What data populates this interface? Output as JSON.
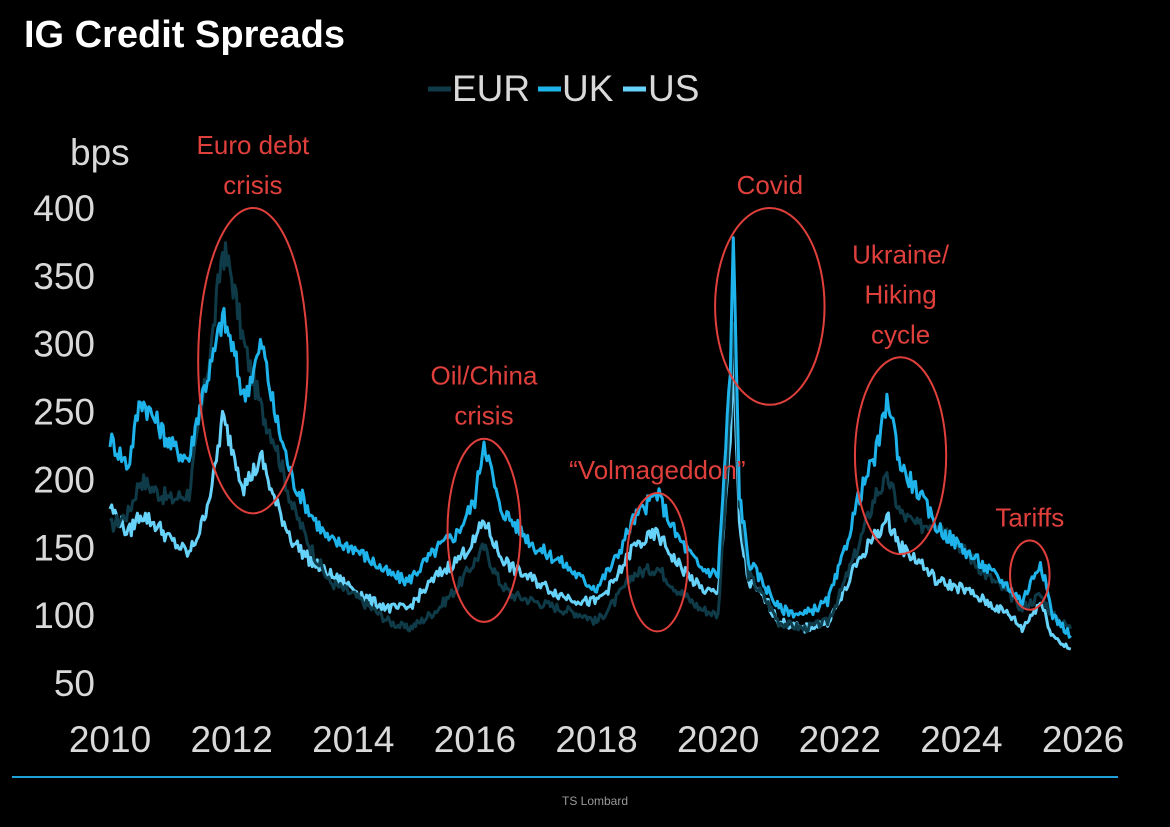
{
  "source": "TS Lombard",
  "colors": {
    "background": "#000000",
    "EUR": "#0f3a47",
    "UK": "#1eb3ea",
    "US": "#68d3fa",
    "annotation": "#e0403c",
    "footer_line": "#1ea0d8"
  },
  "chart_data": {
    "type": "line",
    "title": "IG Credit Spreads",
    "ylabel": "bps",
    "xlabel": "",
    "ylim": [
      50,
      400
    ],
    "xlim": [
      2010,
      2026
    ],
    "yticks": [
      400,
      350,
      300,
      250,
      200,
      150,
      100,
      50
    ],
    "xticks": [
      2010,
      2012,
      2014,
      2016,
      2018,
      2020,
      2022,
      2024,
      2026
    ],
    "grid": false,
    "legend_position": "top-center",
    "series": [
      {
        "name": "EUR",
        "color": "#0f3a47",
        "x": [
          2010.0,
          2010.3,
          2010.5,
          2010.8,
          2011.0,
          2011.3,
          2011.5,
          2011.7,
          2011.85,
          2012.0,
          2012.2,
          2012.5,
          2012.7,
          2013.0,
          2013.3,
          2013.6,
          2014.0,
          2014.3,
          2014.6,
          2014.9,
          2015.1,
          2015.4,
          2015.7,
          2016.0,
          2016.15,
          2016.4,
          2016.6,
          2017.0,
          2017.4,
          2017.8,
          2018.0,
          2018.3,
          2018.6,
          2019.0,
          2019.3,
          2019.7,
          2020.0,
          2020.2,
          2020.25,
          2020.35,
          2020.5,
          2020.8,
          2021.0,
          2021.4,
          2021.8,
          2022.0,
          2022.3,
          2022.6,
          2022.8,
          2023.0,
          2023.3,
          2023.6,
          2024.0,
          2024.4,
          2024.8,
          2025.0,
          2025.3,
          2025.5,
          2025.8
        ],
        "y": [
          165,
          175,
          200,
          190,
          185,
          190,
          250,
          310,
          370,
          350,
          300,
          250,
          230,
          180,
          150,
          125,
          115,
          105,
          95,
          90,
          95,
          105,
          120,
          140,
          150,
          125,
          115,
          110,
          105,
          100,
          95,
          110,
          130,
          135,
          120,
          105,
          100,
          250,
          320,
          180,
          130,
          110,
          95,
          90,
          95,
          115,
          150,
          190,
          200,
          175,
          165,
          170,
          150,
          130,
          115,
          105,
          115,
          100,
          90
        ]
      },
      {
        "name": "UK",
        "color": "#1eb3ea",
        "x": [
          2010.0,
          2010.3,
          2010.5,
          2010.8,
          2011.0,
          2011.3,
          2011.5,
          2011.7,
          2011.85,
          2012.0,
          2012.2,
          2012.5,
          2012.7,
          2013.0,
          2013.3,
          2013.6,
          2014.0,
          2014.3,
          2014.6,
          2014.9,
          2015.1,
          2015.4,
          2015.7,
          2016.0,
          2016.15,
          2016.4,
          2016.6,
          2017.0,
          2017.4,
          2017.8,
          2018.0,
          2018.3,
          2018.6,
          2019.0,
          2019.3,
          2019.7,
          2020.0,
          2020.2,
          2020.25,
          2020.35,
          2020.5,
          2020.8,
          2021.0,
          2021.4,
          2021.8,
          2022.0,
          2022.3,
          2022.6,
          2022.8,
          2023.0,
          2023.3,
          2023.6,
          2024.0,
          2024.4,
          2024.8,
          2025.0,
          2025.3,
          2025.5,
          2025.8
        ],
        "y": [
          230,
          210,
          260,
          240,
          225,
          215,
          260,
          290,
          320,
          300,
          260,
          300,
          250,
          200,
          175,
          155,
          150,
          140,
          130,
          125,
          135,
          150,
          160,
          185,
          230,
          180,
          170,
          150,
          140,
          125,
          120,
          140,
          170,
          190,
          160,
          135,
          130,
          280,
          375,
          190,
          140,
          120,
          105,
          100,
          110,
          135,
          185,
          220,
          260,
          210,
          190,
          165,
          150,
          135,
          120,
          110,
          140,
          100,
          85
        ]
      },
      {
        "name": "US",
        "color": "#68d3fa",
        "x": [
          2010.0,
          2010.3,
          2010.5,
          2010.8,
          2011.0,
          2011.3,
          2011.5,
          2011.7,
          2011.85,
          2012.0,
          2012.2,
          2012.5,
          2012.7,
          2013.0,
          2013.3,
          2013.6,
          2014.0,
          2014.3,
          2014.6,
          2014.9,
          2015.1,
          2015.4,
          2015.7,
          2016.0,
          2016.15,
          2016.4,
          2016.6,
          2017.0,
          2017.4,
          2017.8,
          2018.0,
          2018.3,
          2018.6,
          2019.0,
          2019.3,
          2019.7,
          2020.0,
          2020.2,
          2020.25,
          2020.35,
          2020.5,
          2020.8,
          2021.0,
          2021.4,
          2021.8,
          2022.0,
          2022.3,
          2022.6,
          2022.8,
          2023.0,
          2023.3,
          2023.6,
          2024.0,
          2024.4,
          2024.8,
          2025.0,
          2025.3,
          2025.5,
          2025.8
        ],
        "y": [
          180,
          160,
          175,
          165,
          155,
          145,
          165,
          200,
          245,
          225,
          195,
          215,
          185,
          155,
          140,
          130,
          120,
          110,
          105,
          105,
          115,
          130,
          140,
          155,
          170,
          145,
          135,
          125,
          115,
          110,
          110,
          125,
          150,
          160,
          140,
          120,
          115,
          230,
          285,
          165,
          125,
          110,
          95,
          90,
          95,
          110,
          140,
          160,
          170,
          150,
          140,
          125,
          120,
          110,
          100,
          90,
          110,
          85,
          75
        ]
      }
    ],
    "annotations": [
      {
        "text": [
          "Euro debt",
          "crisis"
        ],
        "x_range": [
          2011.45,
          2013.25
        ],
        "y_range": [
          175,
          400
        ]
      },
      {
        "text": [
          "Oil/China",
          "crisis"
        ],
        "x_range": [
          2015.55,
          2016.75
        ],
        "y_range": [
          95,
          230
        ]
      },
      {
        "text": [
          "“Volmageddon”"
        ],
        "x_range": [
          2018.5,
          2019.5
        ],
        "y_range": [
          88,
          190
        ]
      },
      {
        "text": [
          "Covid"
        ],
        "x_range": [
          2019.95,
          2021.75
        ],
        "y_range": [
          255,
          400
        ]
      },
      {
        "text": [
          "Ukraine/",
          "Hiking",
          "cycle"
        ],
        "x_range": [
          2022.25,
          2023.75
        ],
        "y_range": [
          145,
          290
        ]
      },
      {
        "text": [
          "Tariffs"
        ],
        "x_range": [
          2024.8,
          2025.45
        ],
        "y_range": [
          104,
          155
        ]
      }
    ]
  }
}
